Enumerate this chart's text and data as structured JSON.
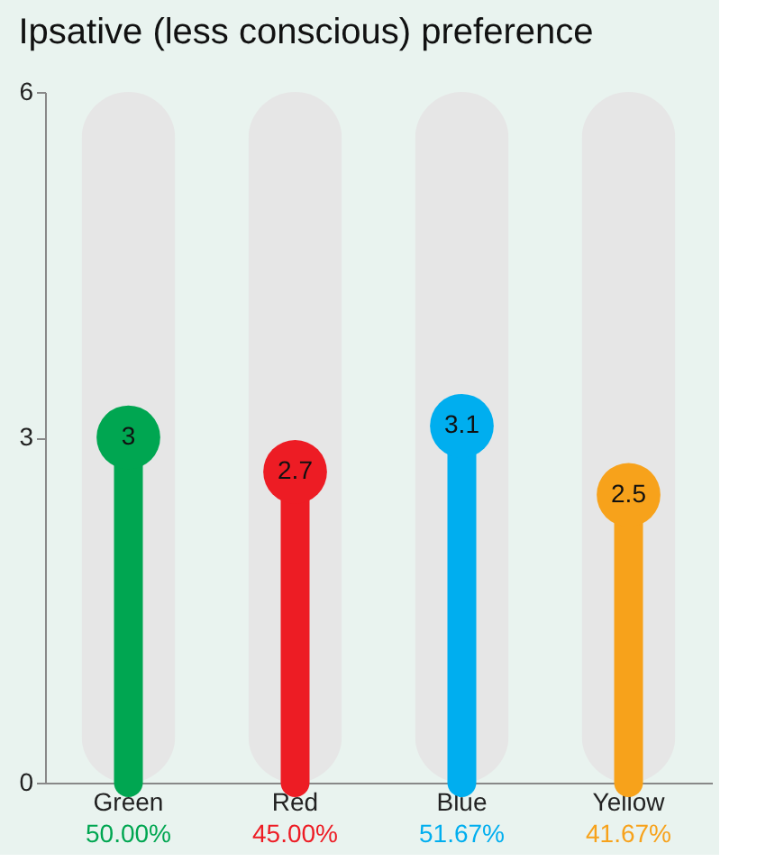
{
  "chart_data": {
    "type": "lollipop",
    "title": "Ipsative (less conscious) preference",
    "categories": [
      "Green",
      "Red",
      "Blue",
      "Yellow"
    ],
    "series": [
      {
        "type": "bar",
        "color": "#e6e6e6",
        "values": [
          6,
          6,
          6,
          6
        ],
        "value_labels": [
          null,
          null,
          null,
          null
        ]
      },
      {
        "colors": [
          "#00a651",
          "#ed1c24",
          "#00aeef",
          "#f7a21b"
        ],
        "values": [
          3,
          2.7,
          3.1,
          2.5
        ]
      }
    ],
    "data_labels": true,
    "ylim": [
      0,
      6
    ],
    "yticks": [
      0,
      3,
      6
    ],
    "grid": false,
    "annotations": [
      "50.00%",
      "45.00%",
      "51.67%",
      "41.67%"
    ]
  }
}
